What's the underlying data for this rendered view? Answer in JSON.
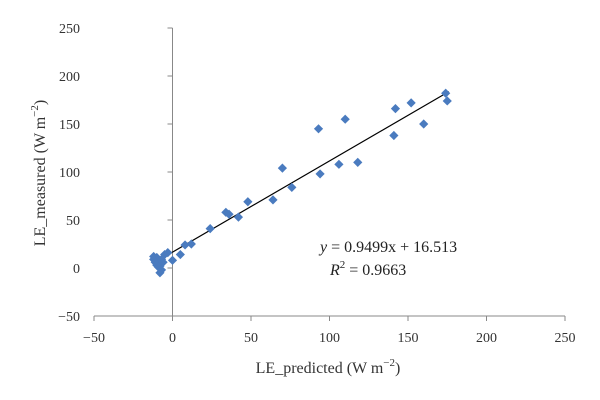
{
  "chart_data": {
    "type": "scatter",
    "xlabel": "LE_predicted (W m",
    "xlabel_unit_exp": "−2",
    "xlabel_close": ")",
    "ylabel": "LE_measured (W m",
    "ylabel_unit_exp": "−2",
    "ylabel_close": ")",
    "xlim": [
      -50,
      250
    ],
    "ylim": [
      -50,
      250
    ],
    "x_ticks": [
      -50,
      0,
      50,
      100,
      150,
      200,
      250
    ],
    "y_ticks": [
      -50,
      0,
      50,
      100,
      150,
      200,
      250
    ],
    "grid": false,
    "marker_color": "#4a7bbf",
    "line_color": "#000000",
    "series": [
      {
        "points": [
          [
            -12,
            12
          ],
          [
            -11,
            10
          ],
          [
            -10,
            11
          ],
          [
            -12,
            9
          ],
          [
            -10,
            8
          ],
          [
            -9,
            7
          ],
          [
            -11,
            6
          ],
          [
            -8,
            5
          ],
          [
            -9,
            4
          ],
          [
            -10,
            3
          ],
          [
            -8,
            2
          ],
          [
            -7,
            9
          ],
          [
            -6,
            6
          ],
          [
            -9,
            1
          ],
          [
            -8,
            -5
          ],
          [
            -7,
            -2
          ],
          [
            -5,
            14
          ],
          [
            -3,
            16
          ],
          [
            0,
            8
          ],
          [
            5,
            14
          ],
          [
            8,
            24
          ],
          [
            12,
            25
          ],
          [
            24,
            41
          ],
          [
            34,
            58
          ],
          [
            36,
            56
          ],
          [
            42,
            53
          ],
          [
            48,
            69
          ],
          [
            64,
            71
          ],
          [
            70,
            104
          ],
          [
            76,
            84
          ],
          [
            93,
            145
          ],
          [
            94,
            98
          ],
          [
            106,
            108
          ],
          [
            110,
            155
          ],
          [
            118,
            110
          ],
          [
            141,
            138
          ],
          [
            142,
            166
          ],
          [
            152,
            172
          ],
          [
            160,
            150
          ],
          [
            174,
            182
          ],
          [
            175,
            174
          ]
        ]
      }
    ],
    "trendline": {
      "slope": 0.9499,
      "intercept": 16.513,
      "x_range": [
        -12,
        176
      ]
    },
    "equation_prefix": "y",
    "equation_rest": " = 0.9499x + 16.513",
    "equation_x_var": "x",
    "r2_label": "R",
    "r2_exp": "2",
    "r2_value": " = 0.9663"
  }
}
